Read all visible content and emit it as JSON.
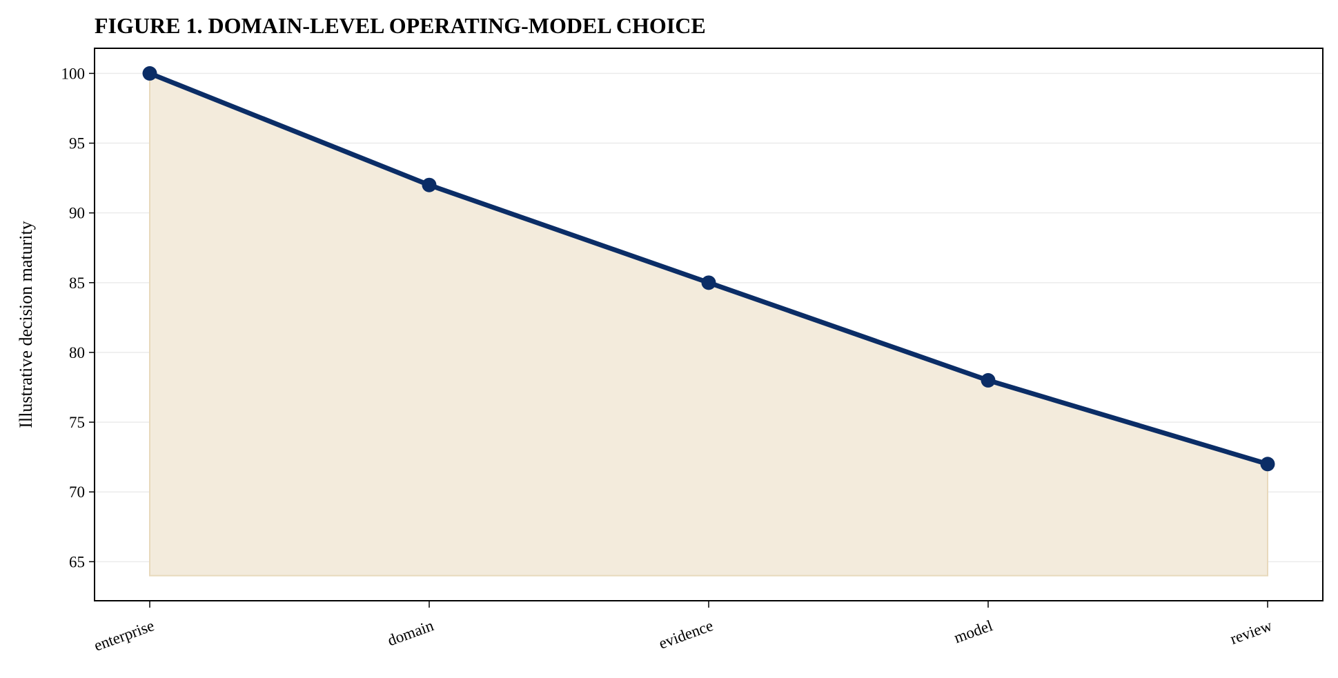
{
  "chart_data": {
    "type": "area",
    "title": "FIGURE 1. DOMAIN-LEVEL OPERATING-MODEL CHOICE",
    "xlabel": "",
    "ylabel": "Illustrative decision maturity",
    "categories": [
      "enterprise",
      "domain",
      "evidence",
      "model",
      "review"
    ],
    "series": [
      {
        "values": [
          100,
          92,
          85,
          78,
          72
        ]
      }
    ],
    "area_baseline": 64,
    "ylim": [
      62.2,
      101.8
    ],
    "yticks": [
      65,
      70,
      75,
      80,
      85,
      90,
      95,
      100
    ],
    "grid": "horizontal",
    "colors": {
      "line": "#0b2d66",
      "fill": "#f3ebdc",
      "fill_edge": "#e8d9bc",
      "grid": "#ebebeb"
    }
  }
}
